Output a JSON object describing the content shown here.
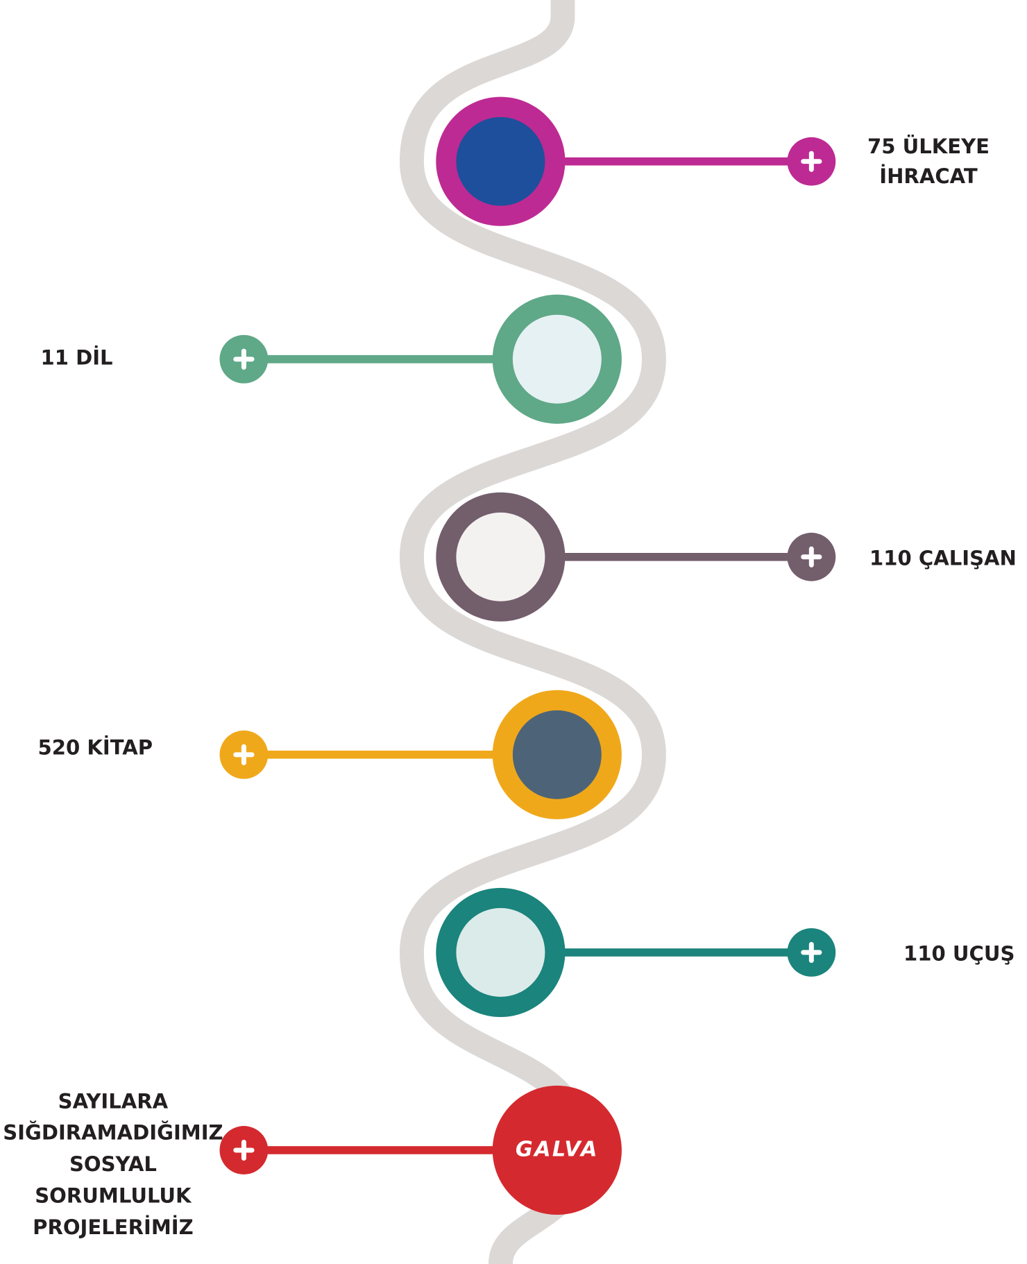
{
  "items": [
    {
      "label": [
        "75 ÜLKEYE",
        "İHRACAT"
      ]
    },
    {
      "label": [
        "11 DİL"
      ]
    },
    {
      "label": [
        "110 ÇALIŞAN"
      ]
    },
    {
      "label": [
        "520 KİTAP"
      ]
    },
    {
      "label": [
        "110 UÇUŞ"
      ]
    },
    {
      "label": [
        "SAYILARA",
        "SIĞDIRAMADIĞIMIZ",
        "SOSYAL",
        "SORUMLULUK",
        "PROJELERİMİZ"
      ],
      "logo": "GALVA"
    }
  ]
}
